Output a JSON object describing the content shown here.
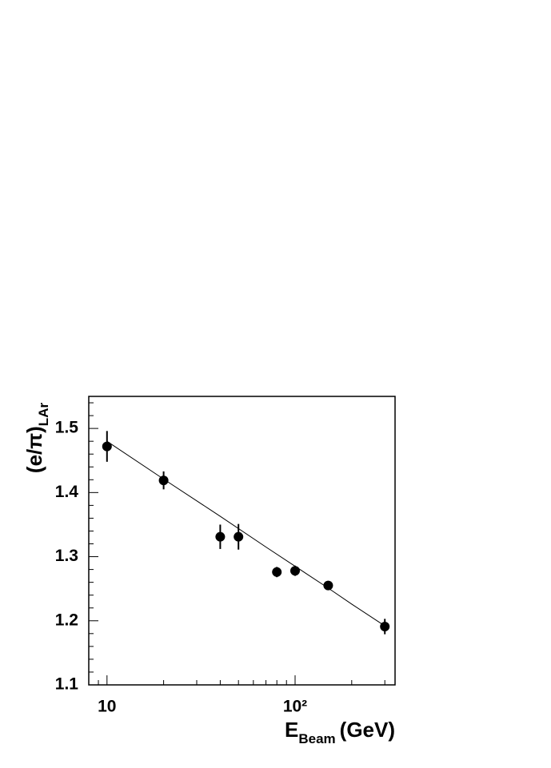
{
  "chart_data": {
    "type": "scatter",
    "x_log": true,
    "xlim": [
      8,
      340
    ],
    "ylim": [
      1.1,
      1.55
    ],
    "xticks": [
      10,
      {
        "value": 100,
        "label": "10²"
      }
    ],
    "yticks": [
      1.1,
      1.2,
      1.3,
      1.4,
      1.5
    ],
    "x_label": {
      "main": "E",
      "sub": "Beam",
      "unit": "(GeV)"
    },
    "y_label": {
      "main": "(e/π)",
      "sub": "LAr"
    },
    "series": [
      {
        "color": "#000000",
        "x": [
          10,
          20,
          40,
          50,
          80,
          100,
          150,
          300
        ],
        "values": [
          1.472,
          1.419,
          1.331,
          1.331,
          1.276,
          1.278,
          1.255,
          1.191
        ],
        "errors": [
          0.024,
          0.014,
          0.019,
          0.02,
          0.008,
          0.008,
          0.006,
          0.012
        ]
      }
    ],
    "fit": {
      "color": "#000000",
      "x": [
        10,
        20,
        40,
        70,
        100,
        150,
        200,
        300
      ],
      "values": [
        1.48,
        1.421,
        1.363,
        1.315,
        1.285,
        1.251,
        1.226,
        1.192
      ]
    }
  }
}
